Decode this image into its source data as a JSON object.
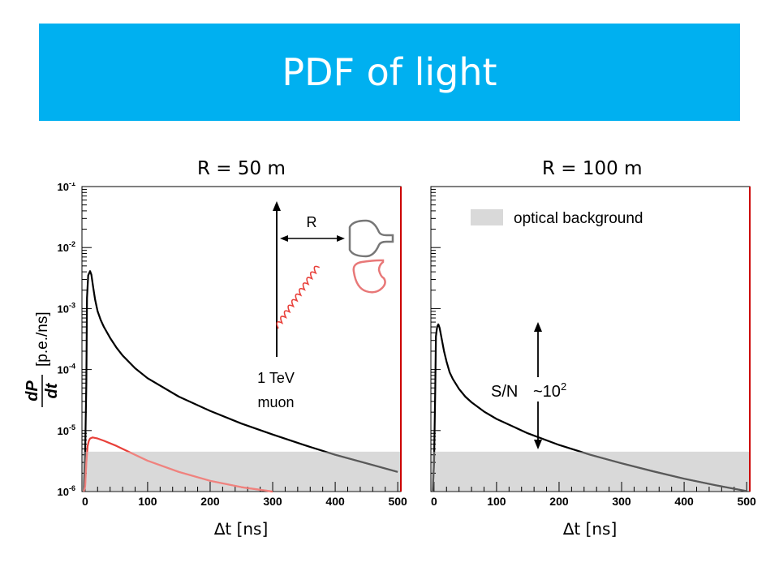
{
  "title": "PDF of light",
  "colors": {
    "title_bar": "#00b0f0",
    "signal": "#000000",
    "red_curve": "#e8403a",
    "background_band": "#d9d9d9"
  },
  "chart_data": [
    {
      "panel": "left",
      "type": "line",
      "title": "R = 50 m",
      "xlabel": "∆t [ns]",
      "ylabel_num": "dP",
      "ylabel_den": "dt",
      "ylabel_unit": "[p.e./ns]",
      "log_y": true,
      "xlim": [
        -5,
        505
      ],
      "ylim": [
        1e-06,
        0.1
      ],
      "x_ticks": [
        "0",
        "100",
        "200",
        "300",
        "400",
        "500"
      ],
      "y_ticks": [
        "10-6",
        "10-5",
        "10-4",
        "10-3",
        "10-2",
        "10-1"
      ],
      "y_tick_labels": [
        {
          "base": "10",
          "exp": "-6"
        },
        {
          "base": "10",
          "exp": "-5"
        },
        {
          "base": "10",
          "exp": "-4"
        },
        {
          "base": "10",
          "exp": "-3"
        },
        {
          "base": "10",
          "exp": "-2"
        },
        {
          "base": "10",
          "exp": "-1"
        }
      ],
      "background_level": 4.5e-06,
      "series": [
        {
          "color": "#000000",
          "x": [
            -2,
            0,
            2,
            3,
            5,
            8,
            10,
            13,
            16,
            20,
            25,
            30,
            40,
            50,
            60,
            80,
            100,
            150,
            200,
            250,
            300,
            350,
            400,
            450,
            500
          ],
          "y": [
            1e-06,
            4e-06,
            6e-05,
            0.0015,
            0.0035,
            0.0041,
            0.0036,
            0.0022,
            0.0014,
            0.0009,
            0.00065,
            0.0005,
            0.00033,
            0.00023,
            0.00017,
            0.000105,
            7.2e-05,
            3.6e-05,
            2.1e-05,
            1.3e-05,
            8.6e-06,
            5.8e-06,
            4e-06,
            2.9e-06,
            2.1e-06
          ]
        },
        {
          "color": "#e8403a",
          "x": [
            -2,
            0,
            2,
            4,
            6,
            8,
            12,
            20,
            30,
            50,
            80,
            100,
            150,
            200,
            250,
            300
          ],
          "y": [
            1e-06,
            1.2e-06,
            3e-06,
            5.5e-06,
            6.8e-06,
            7.4e-06,
            7.7e-06,
            7.4e-06,
            6.8e-06,
            5.6e-06,
            4e-06,
            3.2e-06,
            2.1e-06,
            1.5e-06,
            1.18e-06,
            1e-06
          ]
        }
      ]
    },
    {
      "panel": "right",
      "type": "line",
      "title": "R = 100 m",
      "xlabel": "∆t [ns]",
      "log_y": true,
      "xlim": [
        -5,
        505
      ],
      "ylim": [
        1e-06,
        0.1
      ],
      "x_ticks": [
        "0",
        "100",
        "200",
        "300",
        "400",
        "500"
      ],
      "background_level": 4.5e-06,
      "legend": "optical background",
      "annotation": {
        "text": "S/N",
        "approx": "~10",
        "exp": "2"
      },
      "series": [
        {
          "color": "#000000",
          "x": [
            -2,
            0,
            2,
            3,
            5,
            7,
            9,
            12,
            16,
            20,
            25,
            30,
            40,
            50,
            60,
            80,
            100,
            150,
            200,
            250,
            300,
            350,
            400,
            450,
            500
          ],
          "y": [
            1e-06,
            3e-06,
            5e-05,
            0.00035,
            0.0005,
            0.00055,
            0.00048,
            0.00033,
            0.0002,
            0.000135,
            9e-05,
            7e-05,
            4.8e-05,
            3.6e-05,
            2.9e-05,
            2.05e-05,
            1.55e-05,
            9e-06,
            5.8e-06,
            4e-06,
            2.9e-06,
            2.15e-06,
            1.62e-06,
            1.27e-06,
            1.02e-06
          ]
        }
      ]
    }
  ],
  "diagram": {
    "distance_label": "R",
    "muon_label_line1": "1 TeV",
    "muon_label_line2": "muon"
  }
}
